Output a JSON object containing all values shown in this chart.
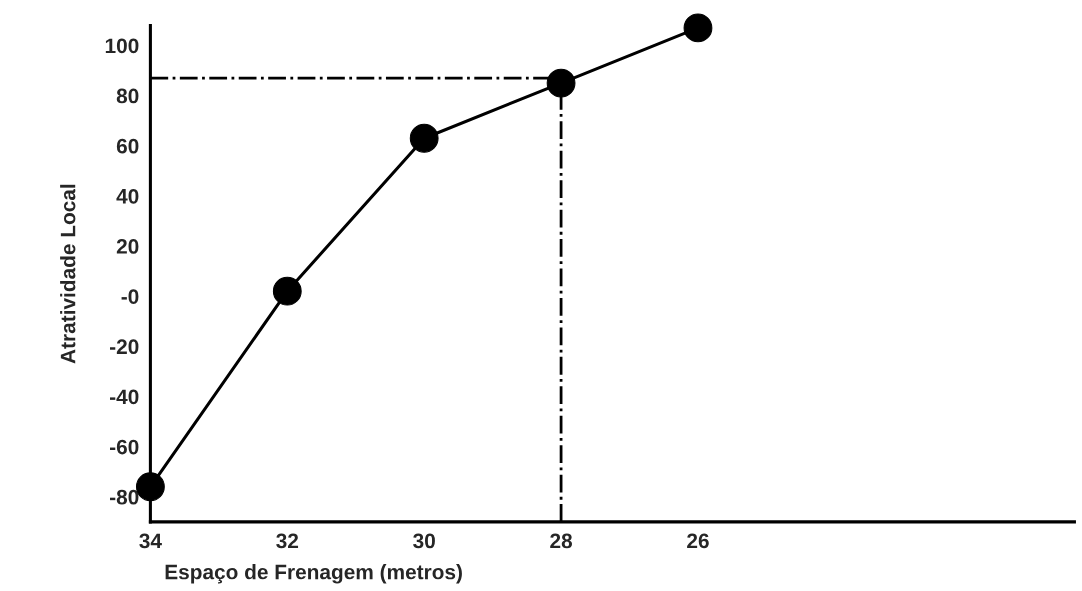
{
  "chart_data": {
    "type": "line",
    "xlabel": "Espaço de Frenagem (metros)",
    "ylabel": "Atratividade Local",
    "x": [
      34,
      32,
      30,
      28,
      26
    ],
    "series": [
      {
        "color": "#000000",
        "values": [
          -76,
          2,
          63,
          85,
          107
        ]
      }
    ],
    "xlim": [
      34,
      20.5
    ],
    "xticks": [
      34,
      32,
      30,
      28,
      26
    ],
    "ylim": [
      -90,
      108
    ],
    "yticks": [
      {
        "value": -80,
        "label": "-80"
      },
      {
        "value": -60,
        "label": "-60"
      },
      {
        "value": -40,
        "label": "-40"
      },
      {
        "value": -20,
        "label": "-20"
      },
      {
        "value": 0,
        "label": "-0"
      },
      20,
      40,
      60,
      80,
      100
    ],
    "ref_lines": [
      {
        "axis": "y",
        "value": 87,
        "line_style": "dashdot",
        "color": "#000000"
      },
      {
        "axis": "x",
        "value": 28,
        "line_style": "dashdot",
        "color": "#000000"
      }
    ],
    "marker": "circle",
    "line_style": "solid",
    "grid": false,
    "legend": false
  }
}
